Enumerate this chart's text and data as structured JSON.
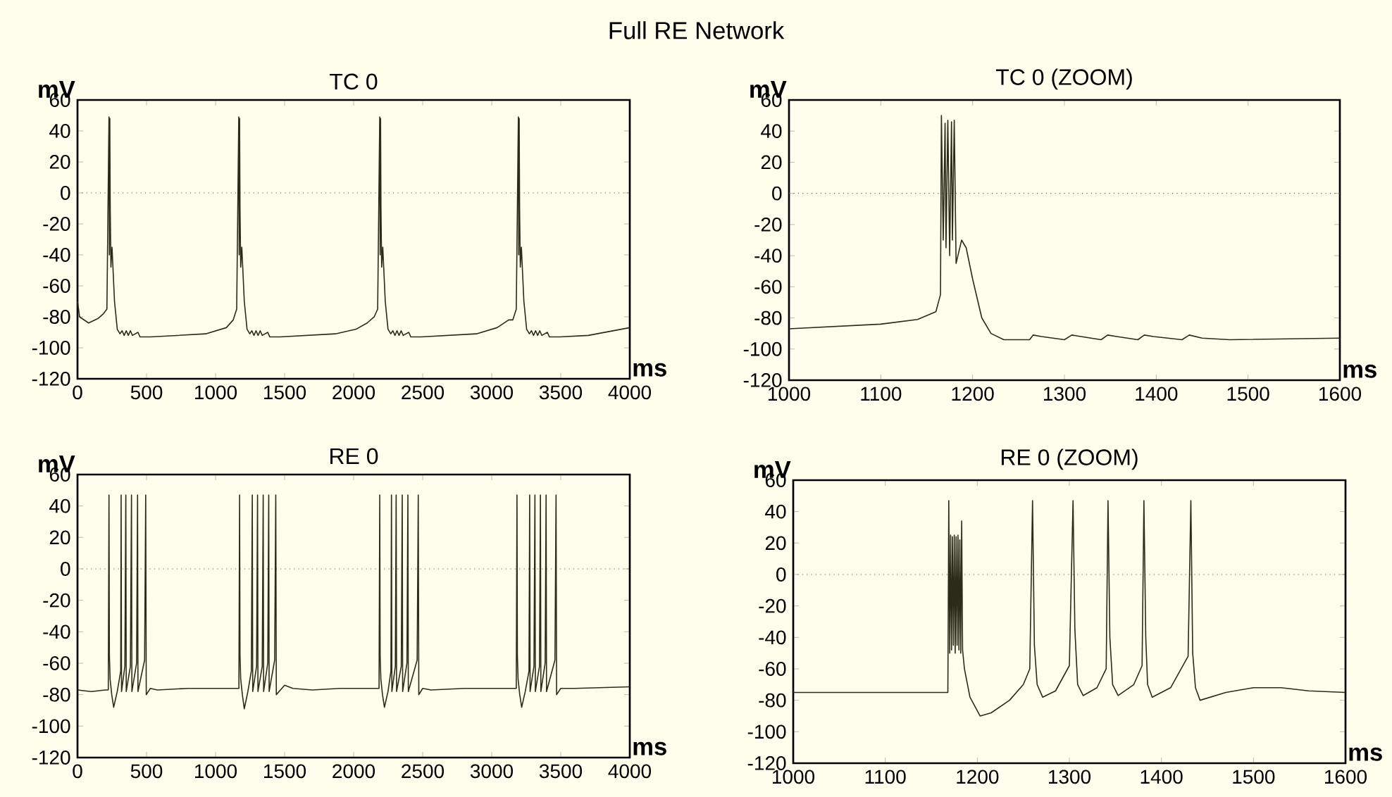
{
  "chart_data": [
    {
      "type": "line",
      "title": "TC 0",
      "xlabel": "ms",
      "ylabel": "mV",
      "annotations": [
        "Full RE Network"
      ],
      "xlim": [
        0,
        4000
      ],
      "ylim": [
        -120,
        60
      ],
      "xticks": [
        0,
        500,
        1000,
        1500,
        2000,
        2500,
        3000,
        3500,
        4000
      ],
      "yticks": [
        -120,
        -100,
        -80,
        -60,
        -40,
        -20,
        0,
        20,
        40,
        60
      ],
      "ref_lines": [
        {
          "axis": "y",
          "value": 0,
          "line_style": "dotted",
          "color": "#555555"
        }
      ],
      "series": [
        {
          "color": "#2b2b1a",
          "x": [
            0,
            15,
            80,
            150,
            188,
            213,
            228,
            231,
            234,
            237,
            242,
            250,
            268,
            288,
            308,
            323,
            338,
            353,
            368,
            383,
            398,
            438,
            453,
            528,
            928,
            1078,
            1128,
            1153,
            1168,
            1171,
            1174,
            1177,
            1182,
            1190,
            1208,
            1228,
            1248,
            1263,
            1278,
            1293,
            1308,
            1323,
            1338,
            1378,
            1393,
            1468,
            1868,
            2018,
            2098,
            2149,
            2174,
            2189,
            2192,
            2195,
            2198,
            2203,
            2211,
            2229,
            2249,
            2269,
            2284,
            2299,
            2314,
            2329,
            2344,
            2359,
            2399,
            2414,
            2489,
            2889,
            3039,
            3123,
            3153,
            3178,
            3193,
            3196,
            3199,
            3202,
            3207,
            3215,
            3233,
            3253,
            3273,
            3288,
            3303,
            3318,
            3333,
            3348,
            3363,
            3403,
            3418,
            3493,
            3700,
            4000
          ],
          "values": [
            -70,
            -80,
            -84,
            -81,
            -78,
            -75,
            49,
            -40,
            48,
            -10,
            -48,
            -35,
            -70,
            -88,
            -91,
            -89,
            -92,
            -89,
            -92,
            -89,
            -92,
            -90,
            -93,
            -93,
            -91,
            -87,
            -82,
            -75,
            49,
            -40,
            48,
            -10,
            -48,
            -35,
            -70,
            -88,
            -91,
            -89,
            -92,
            -89,
            -92,
            -89,
            -92,
            -90,
            -93,
            -93,
            -91,
            -88,
            -84,
            -80,
            -75,
            49,
            -40,
            48,
            -10,
            -48,
            -35,
            -70,
            -88,
            -91,
            -89,
            -92,
            -89,
            -92,
            -89,
            -92,
            -90,
            -93,
            -93,
            -91,
            -87,
            -82,
            -82,
            -75,
            49,
            -40,
            48,
            -10,
            -48,
            -35,
            -70,
            -88,
            -91,
            -89,
            -92,
            -89,
            -92,
            -89,
            -92,
            -90,
            -93,
            -93,
            -92,
            -87
          ]
        }
      ]
    },
    {
      "type": "line",
      "title": "TC 0  (ZOOM)",
      "xlabel": "ms",
      "ylabel": "mV",
      "xlim": [
        1000,
        1600
      ],
      "ylim": [
        -120,
        60
      ],
      "xticks": [
        1000,
        1100,
        1200,
        1300,
        1400,
        1500,
        1600
      ],
      "yticks": [
        -120,
        -100,
        -80,
        -60,
        -40,
        -20,
        0,
        20,
        40,
        60
      ],
      "ref_lines": [
        {
          "axis": "y",
          "value": 0,
          "line_style": "dotted",
          "color": "#555555"
        }
      ],
      "series": [
        {
          "color": "#2b2b1a",
          "x": [
            1000,
            1100,
            1140,
            1160,
            1165,
            1166,
            1168,
            1170,
            1171,
            1173,
            1175,
            1177,
            1178,
            1180,
            1182,
            1184,
            1188,
            1193,
            1200,
            1210,
            1220,
            1234,
            1262,
            1266,
            1275,
            1300,
            1308,
            1318,
            1340,
            1347,
            1357,
            1380,
            1387,
            1397,
            1428,
            1436,
            1450,
            1480,
            1600
          ],
          "values": [
            -87,
            -84,
            -81,
            -76,
            -65,
            50,
            -30,
            45,
            -35,
            47,
            -40,
            46,
            -30,
            47,
            -45,
            -40,
            -30,
            -35,
            -55,
            -80,
            -90,
            -94,
            -94,
            -91,
            -92,
            -94,
            -91,
            -92,
            -94,
            -91,
            -92,
            -94,
            -91,
            -92,
            -94,
            -91,
            -93,
            -94,
            -93
          ]
        }
      ]
    },
    {
      "type": "line",
      "title": "RE 0",
      "xlabel": "ms",
      "ylabel": "mV",
      "xlim": [
        0,
        4000
      ],
      "ylim": [
        -120,
        60
      ],
      "xticks": [
        0,
        500,
        1000,
        1500,
        2000,
        2500,
        3000,
        3500,
        4000
      ],
      "yticks": [
        -120,
        -100,
        -80,
        -60,
        -40,
        -20,
        0,
        20,
        40,
        60
      ],
      "ref_lines": [
        {
          "axis": "y",
          "value": 0,
          "line_style": "dotted",
          "color": "#555555"
        }
      ],
      "series": [
        {
          "color": "#2b2b1a",
          "x": [
            0,
            100,
            200,
            223,
            228,
            231,
            236,
            248,
            262,
            288,
            313,
            316,
            319,
            343,
            350,
            353,
            383,
            391,
            394,
            428,
            435,
            438,
            486,
            494,
            498,
            528,
            578,
            800,
            1000,
            1169,
            1174,
            1177,
            1182,
            1194,
            1208,
            1234,
            1259,
            1266,
            1269,
            1297,
            1304,
            1307,
            1338,
            1345,
            1348,
            1378,
            1385,
            1388,
            1428,
            1436,
            1440,
            1500,
            1560,
            1700,
            1900,
            2100,
            2184,
            2189,
            2192,
            2197,
            2209,
            2223,
            2249,
            2270,
            2274,
            2277,
            2302,
            2308,
            2311,
            2345,
            2352,
            2355,
            2386,
            2393,
            2396,
            2460,
            2468,
            2472,
            2500,
            2560,
            2800,
            3000,
            3178,
            3183,
            3186,
            3191,
            3203,
            3217,
            3243,
            3270,
            3275,
            3278,
            3306,
            3313,
            3316,
            3346,
            3353,
            3356,
            3387,
            3394,
            3397,
            3458,
            3466,
            3470,
            3500,
            3600,
            4000
          ],
          "values": [
            -77,
            -78,
            -77,
            -77,
            47,
            -55,
            -70,
            -80,
            -88,
            -78,
            -65,
            47,
            -78,
            -62,
            47,
            -78,
            -62,
            47,
            -78,
            -60,
            47,
            -78,
            -58,
            47,
            -80,
            -76,
            -77,
            -76,
            -76,
            -76,
            47,
            -55,
            -70,
            -80,
            -89,
            -78,
            -65,
            47,
            -78,
            -62,
            47,
            -78,
            -62,
            47,
            -78,
            -60,
            47,
            -78,
            -58,
            47,
            -80,
            -74,
            -76,
            -77,
            -76,
            -76,
            -76,
            47,
            -55,
            -70,
            -80,
            -88,
            -78,
            -65,
            47,
            -78,
            -62,
            47,
            -78,
            -62,
            47,
            -78,
            -60,
            47,
            -78,
            -58,
            47,
            -80,
            -76,
            -77,
            -76,
            -76,
            -76,
            47,
            -55,
            -70,
            -80,
            -88,
            -78,
            -65,
            47,
            -78,
            -62,
            47,
            -78,
            -62,
            47,
            -78,
            -60,
            47,
            -78,
            -58,
            47,
            -80,
            -76,
            -76,
            -75
          ]
        }
      ]
    },
    {
      "type": "line",
      "title": "RE 0  (ZOOM)",
      "xlabel": "ms",
      "ylabel": "mV",
      "xlim": [
        1000,
        1600
      ],
      "ylim": [
        -120,
        60
      ],
      "xticks": [
        1000,
        1100,
        1200,
        1300,
        1400,
        1500,
        1600
      ],
      "yticks": [
        -120,
        -100,
        -80,
        -60,
        -40,
        -20,
        0,
        20,
        40,
        60
      ],
      "ref_lines": [
        {
          "axis": "y",
          "value": 0,
          "line_style": "dotted",
          "color": "#555555"
        }
      ],
      "series": [
        {
          "color": "#2b2b1a",
          "x": [
            1000,
            1168,
            1169,
            1170,
            1171,
            1172,
            1173,
            1174,
            1175,
            1176,
            1177,
            1178,
            1179,
            1180,
            1181,
            1182,
            1183,
            1184,
            1186,
            1192,
            1203,
            1215,
            1235,
            1250,
            1257,
            1260,
            1262,
            1265,
            1271,
            1285,
            1300,
            1304,
            1306,
            1309,
            1315,
            1330,
            1340,
            1342,
            1344,
            1347,
            1353,
            1370,
            1379,
            1381,
            1383,
            1385,
            1390,
            1410,
            1429,
            1432,
            1434,
            1437,
            1442,
            1470,
            1500,
            1530,
            1560,
            1600
          ],
          "values": [
            -75,
            -75,
            47,
            -50,
            25,
            -48,
            24,
            -45,
            25,
            -50,
            24,
            -45,
            25,
            -48,
            22,
            -50,
            34,
            -48,
            -60,
            -78,
            -90,
            -88,
            -80,
            -70,
            -60,
            47,
            -45,
            -70,
            -78,
            -74,
            -58,
            47,
            -35,
            -70,
            -77,
            -72,
            -60,
            47,
            -40,
            -70,
            -77,
            -70,
            -58,
            47,
            -40,
            -70,
            -78,
            -72,
            -52,
            47,
            -50,
            -72,
            -80,
            -75,
            -72,
            -72,
            -74,
            -75
          ]
        }
      ]
    }
  ]
}
